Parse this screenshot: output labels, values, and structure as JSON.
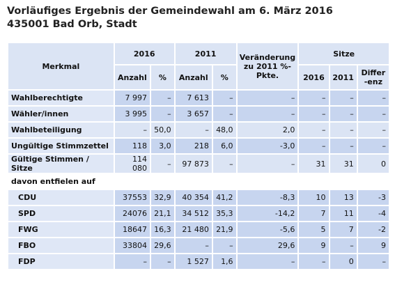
{
  "header": {
    "title": "Vorläufiges Ergebnis der Gemeindewahl am 6. März 2016",
    "subtitle": "435001 Bad Orb, Stadt"
  },
  "table": {
    "head": {
      "merkmal": "Merkmal",
      "y2016": "2016",
      "y2011": "2011",
      "change": "Veränderung zu 2011 %-Pkte.",
      "seats": "Sitze",
      "sub": [
        "Anzahl",
        "%",
        "Anzahl",
        "%",
        "2016",
        "2011",
        "Differ-enz"
      ]
    },
    "rows": [
      {
        "label": "Wahlberechtigte",
        "cells": [
          "7 997",
          "–",
          "7 613",
          "–",
          "–",
          "–",
          "–",
          "–"
        ]
      },
      {
        "label": "Wähler/innen",
        "cells": [
          "3 995",
          "–",
          "3 657",
          "–",
          "–",
          "–",
          "–",
          "–"
        ]
      },
      {
        "label": "Wahlbeteiligung",
        "cells": [
          "–",
          "50,0",
          "–",
          "48,0",
          "2,0",
          "–",
          "–",
          "–"
        ]
      },
      {
        "label": "Ungültige Stimmzettel",
        "cells": [
          "118",
          "3,0",
          "218",
          "6,0",
          "-3,0",
          "–",
          "–",
          "–"
        ]
      },
      {
        "label": "Gültige Stimmen / Sitze",
        "cells": [
          "114 080",
          "–",
          "97 873",
          "–",
          "–",
          "31",
          "31",
          "0"
        ]
      },
      {
        "label": "davon entfielen auf"
      },
      {
        "label": "CDU",
        "cells": [
          "37553",
          "32,9",
          "40 354",
          "41,2",
          "-8,3",
          "10",
          "13",
          "-3"
        ]
      },
      {
        "label": "SPD",
        "cells": [
          "24076",
          "21,1",
          "34 512",
          "35,3",
          "-14,2",
          "7",
          "11",
          "-4"
        ]
      },
      {
        "label": "FWG",
        "cells": [
          "18647",
          "16,3",
          "21 480",
          "21,9",
          "-5,6",
          "5",
          "7",
          "-2"
        ]
      },
      {
        "label": "FBO",
        "cells": [
          "33804",
          "29,6",
          "–",
          "–",
          "29,6",
          "9",
          "–",
          "9"
        ]
      },
      {
        "label": "FDP",
        "cells": [
          "–",
          "–",
          "1 527",
          "1,6",
          "–",
          "–",
          "0",
          "–"
        ]
      }
    ]
  }
}
